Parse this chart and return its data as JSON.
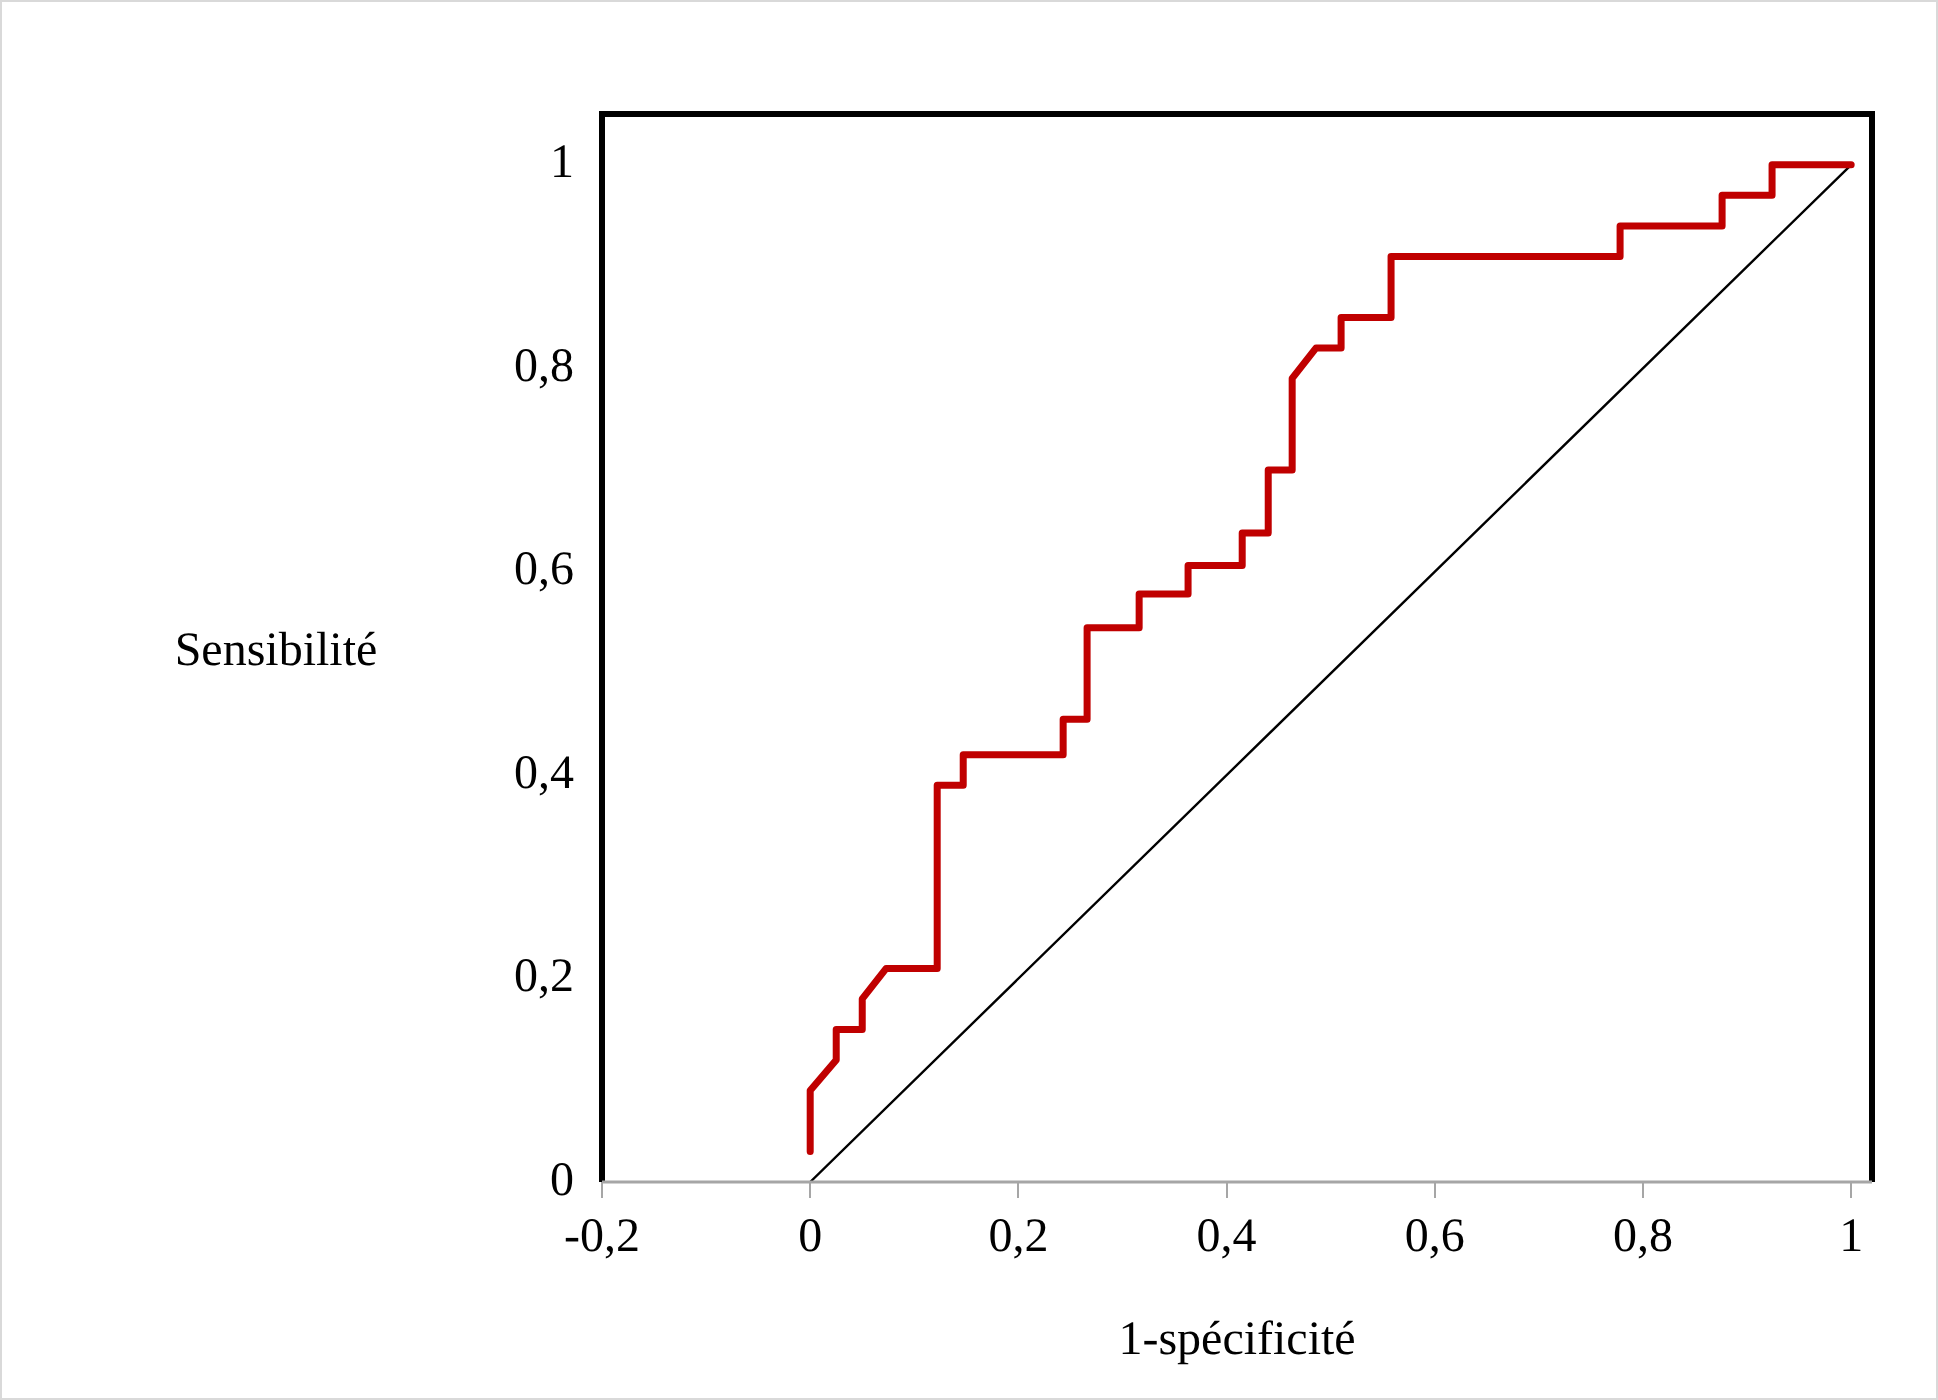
{
  "chart_data": {
    "type": "line",
    "xlabel": "1-spécificité",
    "ylabel": "Sensibilité",
    "xlim": [
      -0.2,
      1.02
    ],
    "ylim": [
      0,
      1.05
    ],
    "xticks": [
      {
        "value": -0.2,
        "label": "-0,2"
      },
      0,
      {
        "value": 0.2,
        "label": "0,2"
      },
      {
        "value": 0.4,
        "label": "0,4"
      },
      {
        "value": 0.6,
        "label": "0,6"
      },
      {
        "value": 0.8,
        "label": "0,8"
      },
      1
    ],
    "yticks": [
      0,
      {
        "value": 0.2,
        "label": "0,2"
      },
      {
        "value": 0.4,
        "label": "0,4"
      },
      {
        "value": 0.6,
        "label": "0,6"
      },
      {
        "value": 0.8,
        "label": "0,8"
      },
      1
    ],
    "grid": false,
    "legend": false,
    "marker": "none",
    "line_style": "solid",
    "series": [
      {
        "color": "#c00000",
        "x": [
          0,
          0,
          0.025,
          0.025,
          0.05,
          0.05,
          0.073,
          0.122,
          0.122,
          0.147,
          0.147,
          0.243,
          0.243,
          0.266,
          0.266,
          0.316,
          0.316,
          0.363,
          0.363,
          0.415,
          0.415,
          0.44,
          0.44,
          0.463,
          0.463,
          0.486,
          0.51,
          0.51,
          0.558,
          0.558,
          0.778,
          0.778,
          0.876,
          0.876,
          0.924,
          0.924,
          1
        ],
        "values": [
          0.03,
          0.09,
          0.12,
          0.15,
          0.15,
          0.18,
          0.21,
          0.21,
          0.39,
          0.39,
          0.42,
          0.42,
          0.455,
          0.455,
          0.545,
          0.545,
          0.578,
          0.578,
          0.606,
          0.606,
          0.638,
          0.638,
          0.7,
          0.7,
          0.79,
          0.82,
          0.82,
          0.85,
          0.85,
          0.91,
          0.91,
          0.94,
          0.94,
          0.97,
          0.97,
          1,
          1
        ]
      },
      {
        "color": "#000000",
        "x": [
          0,
          1
        ],
        "values": [
          0,
          1
        ]
      }
    ]
  }
}
